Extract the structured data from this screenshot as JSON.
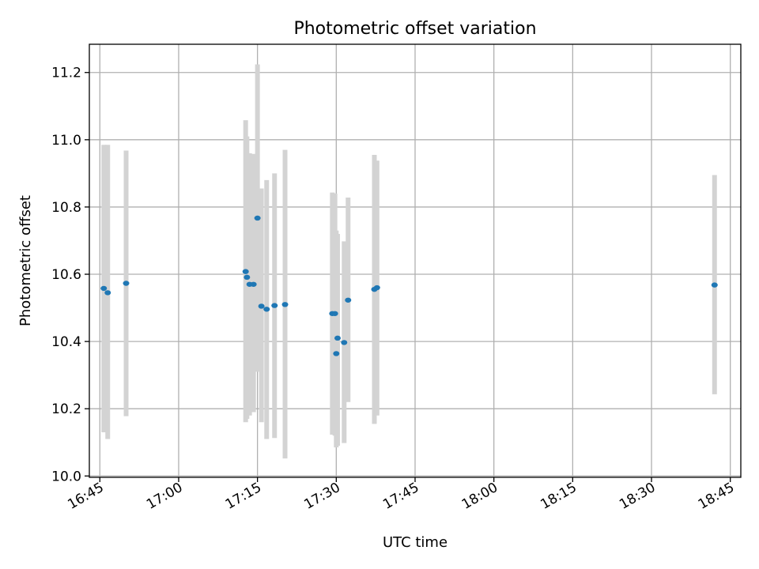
{
  "chart_data": {
    "type": "scatter",
    "title": "Photometric offset variation",
    "xlabel": "UTC time",
    "ylabel": "Photometric offset",
    "x_ticks": [
      "16:45",
      "17:00",
      "17:15",
      "17:30",
      "17:45",
      "18:00",
      "18:15",
      "18:30",
      "18:45"
    ],
    "y_ticks": [
      "10.0",
      "10.2",
      "10.4",
      "10.6",
      "10.8",
      "11.0",
      "11.2"
    ],
    "xlim": [
      "16:43:00",
      "18:47:00"
    ],
    "ylim": [
      9.996,
      11.284
    ],
    "grid": true,
    "error_bar_color": "#d3d3d3",
    "marker_color": "#1f77b4",
    "points": [
      {
        "t": "16:45:45",
        "y": 10.558,
        "lo": 10.13,
        "hi": 10.985
      },
      {
        "t": "16:46:30",
        "y": 10.545,
        "lo": 10.11,
        "hi": 10.985
      },
      {
        "t": "16:50:00",
        "y": 10.573,
        "lo": 10.178,
        "hi": 10.968
      },
      {
        "t": "17:12:45",
        "y": 10.608,
        "lo": 10.16,
        "hi": 11.058
      },
      {
        "t": "17:13:00",
        "y": 10.591,
        "lo": 10.17,
        "hi": 11.01
      },
      {
        "t": "17:13:30",
        "y": 10.57,
        "lo": 10.18,
        "hi": 10.96
      },
      {
        "t": "17:14:15",
        "y": 10.57,
        "lo": 10.19,
        "hi": 10.958
      },
      {
        "t": "17:15:00",
        "y": 10.767,
        "lo": 10.31,
        "hi": 11.224
      },
      {
        "t": "17:15:45",
        "y": 10.505,
        "lo": 10.16,
        "hi": 10.855
      },
      {
        "t": "17:16:45",
        "y": 10.496,
        "lo": 10.11,
        "hi": 10.88
      },
      {
        "t": "17:18:15",
        "y": 10.507,
        "lo": 10.113,
        "hi": 10.9
      },
      {
        "t": "17:20:15",
        "y": 10.51,
        "lo": 10.052,
        "hi": 10.97
      },
      {
        "t": "17:29:15",
        "y": 10.483,
        "lo": 10.123,
        "hi": 10.843
      },
      {
        "t": "17:29:45",
        "y": 10.483,
        "lo": 10.12,
        "hi": 10.84
      },
      {
        "t": "17:30:00",
        "y": 10.364,
        "lo": 10.085,
        "hi": 10.73
      },
      {
        "t": "17:30:15",
        "y": 10.41,
        "lo": 10.09,
        "hi": 10.72
      },
      {
        "t": "17:31:30",
        "y": 10.397,
        "lo": 10.098,
        "hi": 10.698
      },
      {
        "t": "17:32:15",
        "y": 10.523,
        "lo": 10.22,
        "hi": 10.828
      },
      {
        "t": "17:37:15",
        "y": 10.555,
        "lo": 10.155,
        "hi": 10.955
      },
      {
        "t": "17:37:45",
        "y": 10.56,
        "lo": 10.18,
        "hi": 10.938
      },
      {
        "t": "18:42:00",
        "y": 10.568,
        "lo": 10.243,
        "hi": 10.895
      }
    ]
  }
}
